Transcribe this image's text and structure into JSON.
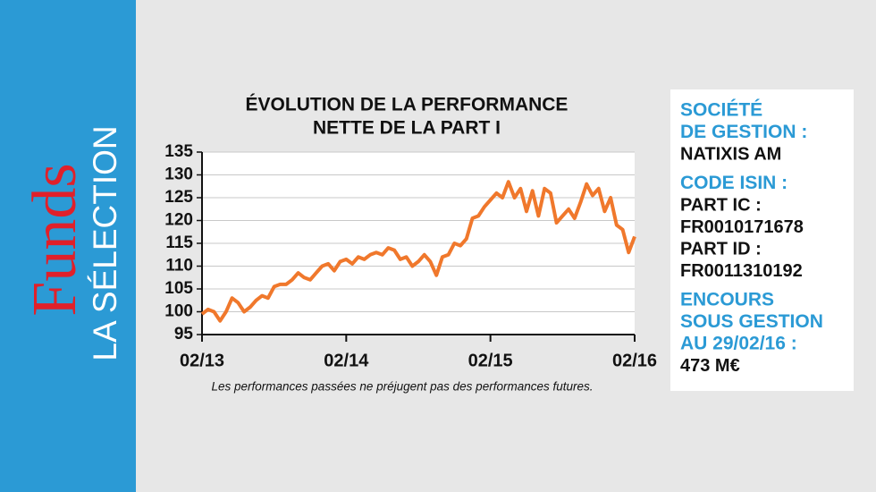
{
  "header": {
    "brand": "Funds",
    "section": "LA SÉLECTION"
  },
  "chart_data": {
    "type": "line",
    "title": [
      "ÉVOLUTION DE LA PERFORMANCE",
      "NETTE DE LA PART I"
    ],
    "footnote": "Les performances passées ne préjugent pas des performances futures.",
    "categories": [
      "02/13",
      null,
      null,
      null,
      null,
      null,
      null,
      null,
      null,
      null,
      null,
      null,
      null,
      null,
      null,
      null,
      null,
      null,
      null,
      null,
      null,
      null,
      null,
      null,
      "02/14",
      null,
      null,
      null,
      null,
      null,
      null,
      null,
      null,
      null,
      null,
      null,
      null,
      null,
      null,
      null,
      null,
      null,
      null,
      null,
      null,
      null,
      null,
      null,
      "02/15",
      null,
      null,
      null,
      null,
      null,
      null,
      null,
      null,
      null,
      null,
      null,
      null,
      null,
      null,
      null,
      null,
      null,
      null,
      null,
      null,
      null,
      null,
      null,
      "02/16"
    ],
    "values": [
      99.5,
      100.5,
      100,
      98,
      100,
      103,
      102,
      100,
      101,
      102.5,
      103.5,
      103,
      105.5,
      106,
      106,
      107,
      108.5,
      107.5,
      107,
      108.5,
      110,
      110.5,
      109,
      111,
      111.5,
      110.5,
      112,
      111.5,
      112.5,
      113,
      112.5,
      114,
      113.5,
      111.5,
      112,
      110,
      111,
      112.5,
      111,
      108,
      112,
      112.5,
      115,
      114.5,
      116,
      120.5,
      121,
      123,
      124.5,
      126,
      125,
      128.5,
      125,
      127,
      122,
      126.5,
      121,
      127,
      126,
      119.5,
      121,
      122.5,
      120.5,
      124,
      128,
      125.5,
      127,
      122,
      125,
      119,
      118,
      113,
      116.5
    ],
    "color": "#f0782c",
    "ylim": [
      95,
      135
    ],
    "yticks": [
      95,
      100,
      105,
      110,
      115,
      120,
      125,
      130,
      135
    ],
    "grid": true
  },
  "info": [
    {
      "heading": [
        "SOCIÉTÉ",
        "DE GESTION :"
      ],
      "lines": [
        "NATIXIS AM"
      ]
    },
    {
      "heading": [
        "CODE ISIN :"
      ],
      "lines": [
        "PART IC :",
        "FR0010171678",
        "PART ID :",
        "FR0011310192"
      ]
    },
    {
      "heading": [
        "ENCOURS",
        "SOUS GESTION",
        "AU 29/02/16 :"
      ],
      "lines": [
        "473 M€"
      ]
    }
  ]
}
